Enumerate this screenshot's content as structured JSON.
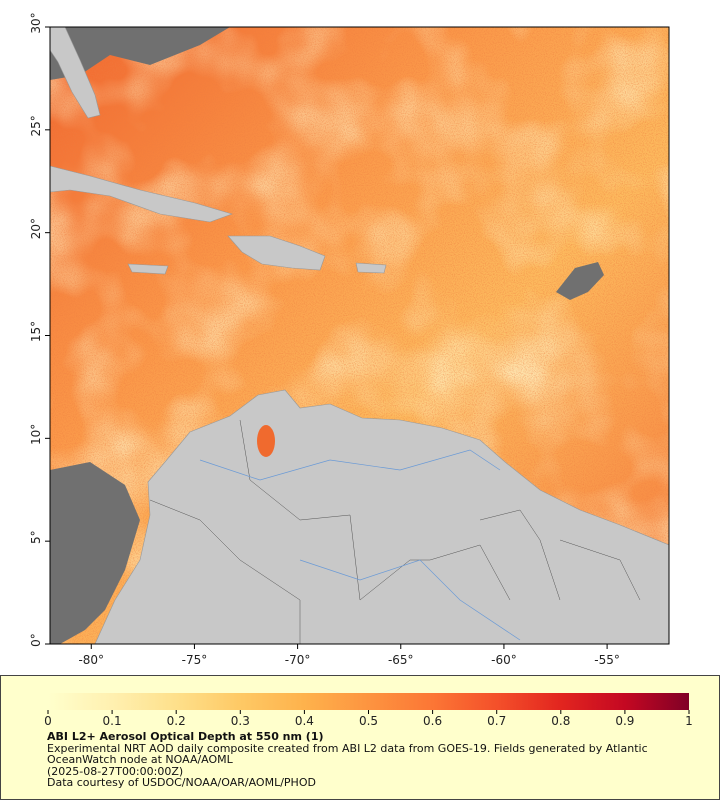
{
  "map": {
    "lonlim": [
      -82,
      -52
    ],
    "latlim": [
      0,
      30
    ],
    "lat_ticks": [
      {
        "value": 0,
        "label": "0°"
      },
      {
        "value": 5,
        "label": "5°"
      },
      {
        "value": 10,
        "label": "10°"
      },
      {
        "value": 15,
        "label": "15°"
      },
      {
        "value": 20,
        "label": "20°"
      },
      {
        "value": 25,
        "label": "25°"
      },
      {
        "value": 30,
        "label": "30°"
      }
    ],
    "lon_ticks": [
      {
        "value": -80,
        "label": "-80°"
      },
      {
        "value": -75,
        "label": "-75°"
      },
      {
        "value": -70,
        "label": "-70°"
      },
      {
        "value": -65,
        "label": "-65°"
      },
      {
        "value": -60,
        "label": "-60°"
      },
      {
        "value": -55,
        "label": "-55°"
      }
    ]
  },
  "colorbar": {
    "lim": [
      0,
      1
    ],
    "ticks": [
      0,
      0.1,
      0.2,
      0.3,
      0.4,
      0.5,
      0.6,
      0.7,
      0.8,
      0.9,
      1
    ],
    "colors": [
      "#ffffcc",
      "#fff0b0",
      "#fee08b",
      "#fec965",
      "#feb24c",
      "#fd9440",
      "#fc7635",
      "#f4502a",
      "#e2251f",
      "#c40822",
      "#800026"
    ]
  },
  "caption": {
    "title": "ABI L2+ Aerosol Optical Depth at 550 nm (1)",
    "description": "Experimental NRT AOD daily composite created from ABI L2 data from GOES-19. Fields generated by Atlantic OceanWatch node at NOAA/AOML",
    "date": "(2025-08-27T00:00:00Z)",
    "credit": "Data courtesy of USDOC/NOAA/OAR/AOML/PHOD"
  }
}
